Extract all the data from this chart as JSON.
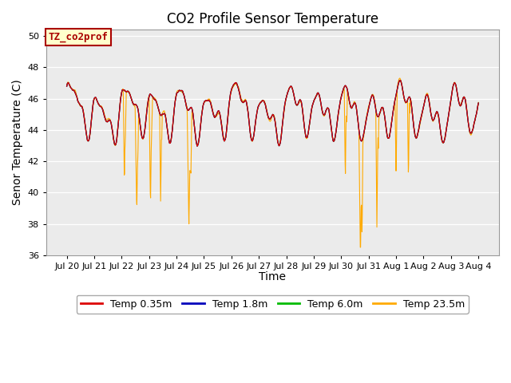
{
  "title": "CO2 Profile Sensor Temperature",
  "ylabel": "Senor Temperature (C)",
  "xlabel": "Time",
  "ylim": [
    36,
    50.4
  ],
  "annotation_text": "TZ_co2prof",
  "annotation_facecolor": "#ffffcc",
  "annotation_edgecolor": "#aa0000",
  "annotation_textcolor": "#aa0000",
  "bg_color": "#ebebeb",
  "legend_labels": [
    "Temp 0.35m",
    "Temp 1.8m",
    "Temp 6.0m",
    "Temp 23.5m"
  ],
  "legend_colors": [
    "#dd0000",
    "#0000bb",
    "#00bb00",
    "#ffaa00"
  ],
  "line_colors": [
    "#dd0000",
    "#0000bb",
    "#00bb00",
    "#ffaa00"
  ],
  "xtick_labels": [
    "Jul 20",
    "Jul 21",
    "Jul 22",
    "Jul 23",
    "Jul 24",
    "Jul 25",
    "Jul 26",
    "Jul 27",
    "Jul 28",
    "Jul 29",
    "Jul 30",
    "Jul 31",
    "Aug 1",
    "Aug 2",
    "Aug 3",
    "Aug 4"
  ],
  "n_points": 1440,
  "base_temp": 45.2,
  "title_fontsize": 12,
  "axis_label_fontsize": 10,
  "tick_fontsize": 8
}
